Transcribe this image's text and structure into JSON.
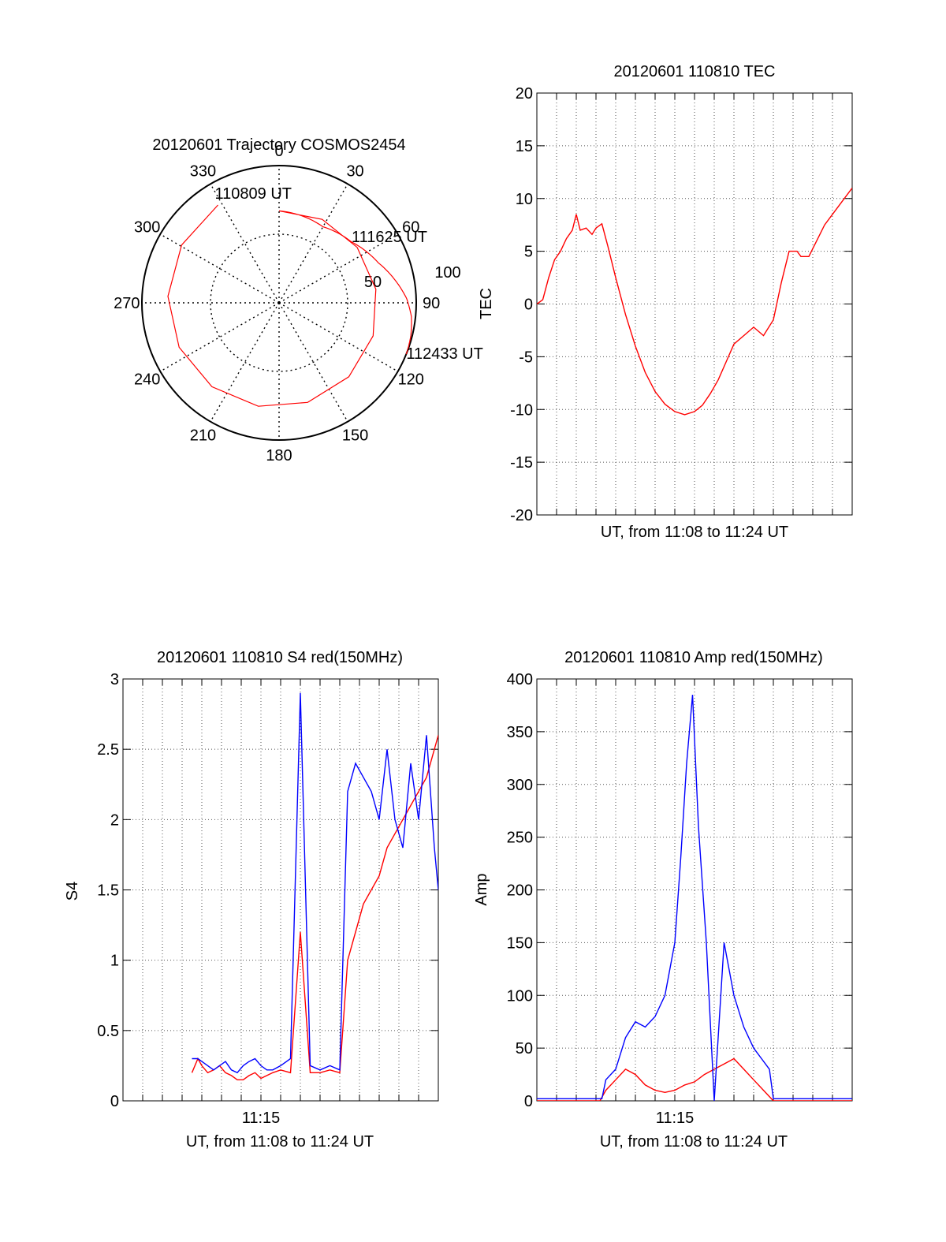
{
  "chart_data": [
    {
      "type": "polar",
      "title": "20120601 Trajectory COSMOS2454",
      "angle_labels": [
        "0",
        "30",
        "60",
        "90",
        "120",
        "150",
        "180",
        "210",
        "240",
        "270",
        "300",
        "330"
      ],
      "radial_labels": [
        "50",
        "100"
      ],
      "series": [
        {
          "color": "#ff0000",
          "points": [
            {
              "az": 328,
              "zen": 84
            },
            {
              "az": 0,
              "zen": 67
            },
            {
              "az": 30,
              "zen": 64
            },
            {
              "az": 50,
              "zen": 69
            },
            {
              "az": 68,
              "zen": 78
            },
            {
              "az": 80,
              "zen": 87
            },
            {
              "az": 88,
              "zen": 93
            },
            {
              "az": 96,
              "zen": 97
            },
            {
              "az": 104,
              "zen": 99
            },
            {
              "az": 112,
              "zen": 100
            }
          ]
        }
      ],
      "annotations": [
        {
          "text": "110809 UT",
          "az": 328,
          "zen": 84
        },
        {
          "text": "111625 UT",
          "az": 50,
          "zen": 69
        },
        {
          "text": "112433 UT",
          "az": 112,
          "zen": 100
        }
      ]
    },
    {
      "type": "line",
      "title": "20120601 110810 TEC",
      "xlabel": "UT, from 11:08 to 11:24 UT",
      "ylabel": "TEC",
      "xlim": [
        0,
        16
      ],
      "ylim": [
        -20,
        20
      ],
      "yticks": [
        "-20",
        "-15",
        "-10",
        "-5",
        "0",
        "5",
        "10",
        "15",
        "20"
      ],
      "grid": true,
      "series": [
        {
          "color": "#ff0000",
          "x": [
            0,
            0.3,
            0.6,
            0.9,
            1.2,
            1.5,
            1.8,
            2.0,
            2.2,
            2.5,
            2.8,
            3.0,
            3.3,
            3.6,
            4.0,
            4.5,
            5.0,
            5.5,
            6.0,
            6.5,
            7.0,
            7.5,
            8.0,
            8.4,
            8.8,
            9.2,
            9.6,
            10.0,
            10.5,
            11.0,
            11.5,
            12.0,
            12.4,
            12.8,
            13.2,
            13.4,
            13.6,
            13.8,
            14.2,
            14.6,
            15.0,
            15.4,
            15.8,
            16.0
          ],
          "y": [
            0,
            0.4,
            2.5,
            4.2,
            5.0,
            6.2,
            7.0,
            8.5,
            7.0,
            7.2,
            6.6,
            7.2,
            7.6,
            5.5,
            2.5,
            -1.0,
            -4.0,
            -6.5,
            -8.3,
            -9.5,
            -10.2,
            -10.5,
            -10.2,
            -9.6,
            -8.5,
            -7.2,
            -5.5,
            -3.8,
            -3.0,
            -2.2,
            -3.0,
            -1.5,
            2.0,
            5.0,
            5.0,
            4.5,
            4.5,
            4.5,
            6.0,
            7.5,
            8.5,
            9.5,
            10.5,
            11.0
          ]
        }
      ]
    },
    {
      "type": "line",
      "title": "20120601 110810 S4 red(150MHz)",
      "xlabel": "UT, from 11:08 to 11:24 UT",
      "ylabel": "S4",
      "xlim": [
        0,
        16
      ],
      "ylim": [
        0,
        3
      ],
      "yticks": [
        "0",
        "0.5",
        "1",
        "1.5",
        "2",
        "2.5",
        "3"
      ],
      "xtick_labels": [
        {
          "x": 7,
          "label": "11:15"
        }
      ],
      "grid": true,
      "series": [
        {
          "color": "#ff0000",
          "x": [
            3.5,
            3.8,
            4.0,
            4.3,
            4.6,
            4.9,
            5.2,
            5.5,
            5.8,
            6.1,
            6.4,
            6.7,
            7.0,
            7.3,
            7.6,
            8.0,
            8.5,
            9.0,
            9.5,
            10.0,
            10.5,
            11.0,
            11.4,
            11.8,
            12.2,
            12.6,
            13.0,
            13.4,
            13.8,
            14.2,
            14.6,
            15.0,
            15.4,
            15.8,
            16.0
          ],
          "y": [
            0.2,
            0.3,
            0.25,
            0.2,
            0.22,
            0.25,
            0.2,
            0.18,
            0.15,
            0.15,
            0.18,
            0.2,
            0.16,
            0.18,
            0.2,
            0.22,
            0.2,
            1.2,
            0.2,
            0.2,
            0.22,
            0.2,
            1.0,
            1.2,
            1.4,
            1.5,
            1.6,
            1.8,
            1.9,
            2.0,
            2.1,
            2.2,
            2.3,
            2.5,
            2.6
          ]
        },
        {
          "color": "#0000ff",
          "x": [
            3.5,
            3.8,
            4.0,
            4.3,
            4.6,
            4.9,
            5.2,
            5.5,
            5.8,
            6.1,
            6.4,
            6.7,
            7.0,
            7.3,
            7.6,
            8.0,
            8.5,
            9.0,
            9.5,
            10.0,
            10.5,
            11.0,
            11.4,
            11.8,
            12.2,
            12.6,
            13.0,
            13.4,
            13.8,
            14.2,
            14.6,
            15.0,
            15.4,
            15.8,
            16.0
          ],
          "y": [
            0.3,
            0.3,
            0.28,
            0.25,
            0.22,
            0.25,
            0.28,
            0.22,
            0.2,
            0.25,
            0.28,
            0.3,
            0.25,
            0.22,
            0.22,
            0.25,
            0.3,
            2.9,
            0.25,
            0.22,
            0.25,
            0.22,
            2.2,
            2.4,
            2.3,
            2.2,
            2.0,
            2.5,
            2.0,
            1.8,
            2.4,
            2.0,
            2.6,
            1.8,
            1.5
          ]
        }
      ]
    },
    {
      "type": "line",
      "title": "20120601 110810 Amp red(150MHz)",
      "xlabel": "UT, from 11:08 to 11:24 UT",
      "ylabel": "Amp",
      "xlim": [
        0,
        16
      ],
      "ylim": [
        0,
        400
      ],
      "yticks": [
        "0",
        "50",
        "100",
        "150",
        "200",
        "250",
        "300",
        "350",
        "400"
      ],
      "xtick_labels": [
        {
          "x": 7,
          "label": "11:15"
        }
      ],
      "grid": true,
      "series": [
        {
          "color": "#ff0000",
          "x": [
            0,
            3.2,
            3.5,
            4.0,
            4.5,
            5.0,
            5.5,
            6.0,
            6.5,
            7.0,
            7.5,
            8.0,
            8.5,
            9.0,
            9.5,
            10.0,
            10.5,
            11.0,
            11.5,
            12.0,
            16.0
          ],
          "y": [
            0,
            0,
            10,
            20,
            30,
            25,
            15,
            10,
            8,
            10,
            15,
            18,
            25,
            30,
            35,
            40,
            30,
            20,
            10,
            0,
            0
          ]
        },
        {
          "color": "#0000ff",
          "x": [
            0,
            3.3,
            3.5,
            4.0,
            4.5,
            5.0,
            5.5,
            6.0,
            6.5,
            7.0,
            7.3,
            7.6,
            7.9,
            8.2,
            8.6,
            9.0,
            9.5,
            10.0,
            10.5,
            11.0,
            11.4,
            11.8,
            12.0,
            16.0
          ],
          "y": [
            2,
            2,
            20,
            30,
            60,
            75,
            70,
            80,
            100,
            150,
            230,
            320,
            385,
            260,
            150,
            0,
            150,
            100,
            70,
            50,
            40,
            30,
            2,
            2
          ]
        }
      ]
    }
  ]
}
